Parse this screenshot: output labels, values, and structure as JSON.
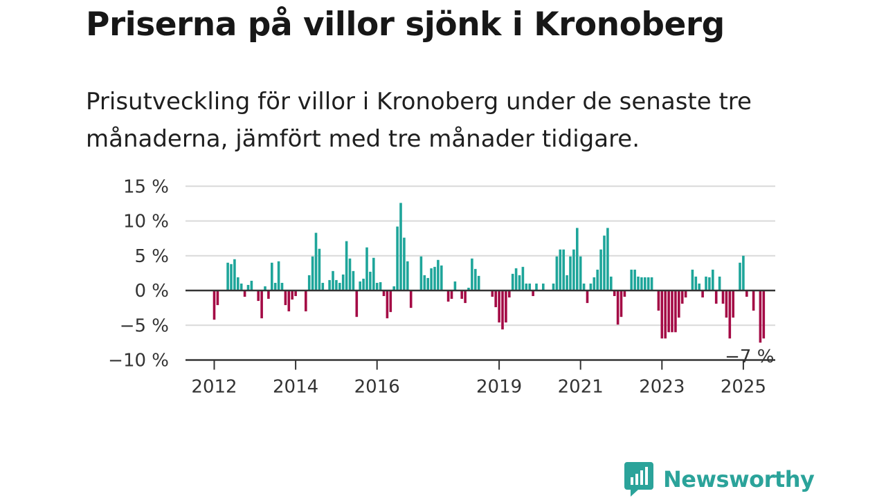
{
  "title": "Priserna på villor sjönk i Kronoberg",
  "subtitle": "Prisutveckling för villor i Kronoberg under de senaste tre månaderna, jämfört med tre månader tidigare.",
  "brand": {
    "name": "Newsworthy",
    "color": "#2ba39a",
    "icon": "bar-chart-speech-bubble-icon"
  },
  "colors": {
    "positive": "#1ea59a",
    "negative": "#a40a45",
    "grid": "#d9d9d9",
    "axis": "#333333"
  },
  "chart_data": {
    "type": "bar",
    "title": "",
    "xlabel": "",
    "ylabel": "",
    "ylim": [
      -10,
      15
    ],
    "y_ticks": [
      {
        "value": 15,
        "label": "15 %"
      },
      {
        "value": 10,
        "label": "10 %"
      },
      {
        "value": 5,
        "label": "5 %"
      },
      {
        "value": 0,
        "label": "0 %"
      },
      {
        "value": -5,
        "label": "−5 %"
      },
      {
        "value": -10,
        "label": "−10 %"
      }
    ],
    "x_ticks": [
      {
        "index": 0,
        "label": "2012"
      },
      {
        "index": 24,
        "label": "2014"
      },
      {
        "index": 48,
        "label": "2016"
      },
      {
        "index": 84,
        "label": "2019"
      },
      {
        "index": 108,
        "label": "2021"
      },
      {
        "index": 132,
        "label": "2023"
      },
      {
        "index": 156,
        "label": "2025"
      }
    ],
    "annotation": {
      "index": 157,
      "label": "−7 %"
    },
    "grid": true,
    "values": [
      -4.2,
      -2.1,
      0,
      0,
      4,
      3.8,
      4.5,
      1.9,
      1,
      -0.9,
      0.8,
      1.4,
      0,
      -1.5,
      -4,
      0.6,
      -1.2,
      4,
      1.1,
      4.2,
      1.1,
      -2.1,
      -3,
      -1.3,
      -0.8,
      0,
      0,
      -3,
      2.2,
      4.9,
      8.3,
      6,
      1.1,
      0,
      1.5,
      2.8,
      1.5,
      1.1,
      2.3,
      7.1,
      4.6,
      2.8,
      -3.8,
      1.3,
      1.7,
      6.2,
      2.7,
      4.7,
      1.1,
      1.2,
      -0.8,
      -4,
      -3.1,
      0.6,
      9.2,
      12.6,
      7.6,
      4.2,
      -2.5,
      0,
      0,
      4.9,
      2.2,
      1.8,
      3.2,
      3.4,
      4.4,
      3.6,
      0,
      -1.6,
      -1.2,
      1.3,
      0,
      -1.2,
      -1.8,
      0.4,
      4.6,
      3.1,
      2.1,
      0,
      0,
      0,
      -0.9,
      -2.4,
      -4.6,
      -5.6,
      -4.6,
      -1,
      2.4,
      3.2,
      2.2,
      3.4,
      1,
      1,
      -0.8,
      1,
      0,
      1,
      0,
      0,
      1,
      4.9,
      5.9,
      5.9,
      2.2,
      4.9,
      5.9,
      9,
      4.9,
      1,
      -1.8,
      1,
      1.9,
      3,
      5.9,
      7.9,
      9,
      2,
      -0.8,
      -4.9,
      -3.8,
      -0.9,
      0,
      3,
      3,
      2,
      1.9,
      1.9,
      1.9,
      1.9,
      0,
      -2.9,
      -6.9,
      -6.9,
      -6,
      -6,
      -6,
      -3.9,
      -1.9,
      -1,
      0,
      3,
      2,
      1,
      -1,
      2,
      1.9,
      3,
      -1.9,
      2,
      -1.9,
      -3.9,
      -6.9,
      -3.9,
      0,
      4,
      5,
      -0.9,
      0,
      -2.9,
      0,
      -7.5,
      -6.9
    ]
  }
}
